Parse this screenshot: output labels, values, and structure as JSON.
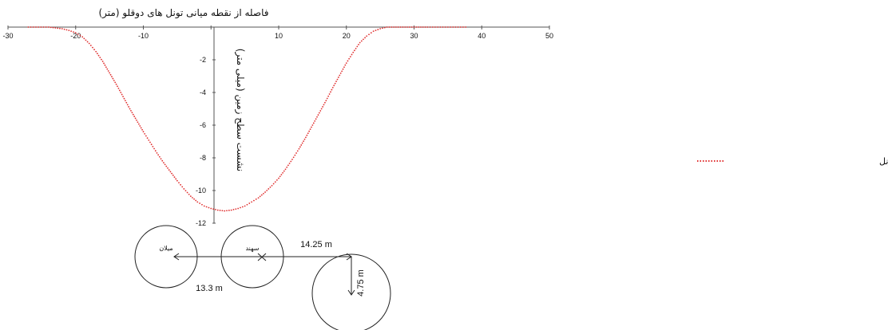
{
  "chart_data": {
    "type": "line",
    "title": "",
    "xlabel": "فاصله از نقطه میانی تونل های دوقلو (متر)",
    "ylabel": "نشست سطح زمین (میلی متر)",
    "xlim": [
      -30,
      50
    ],
    "ylim": [
      -12,
      0
    ],
    "x_ticks": [
      "-30",
      "-20",
      "-10",
      "0",
      "10",
      "20",
      "30",
      "40",
      "50"
    ],
    "y_ticks": [
      "-2",
      "-4",
      "-6",
      "-8",
      "-10",
      "-12"
    ],
    "grid": false,
    "legend_position": "right",
    "series": [
      {
        "name": "منحنی نشست بعد از حفاری تونل",
        "color": "#e03030",
        "style": "dotted",
        "x": [
          -27,
          -24,
          -22,
          -21,
          -20,
          -19,
          -18,
          -17,
          -16,
          -15,
          -14,
          -13,
          -12,
          -11,
          -10,
          -9,
          -8,
          -7,
          -6,
          -5,
          -4,
          -3,
          -2,
          -1,
          0,
          1,
          2,
          3,
          4,
          5,
          6,
          7,
          8,
          9,
          10,
          11,
          12,
          13,
          14,
          15,
          16,
          17,
          18,
          19,
          20,
          21,
          22,
          23,
          24,
          25,
          26,
          27,
          28,
          29,
          30,
          32,
          35,
          38
        ],
        "y": [
          0,
          0,
          -0.1,
          -0.2,
          -0.35,
          -0.6,
          -1.0,
          -1.5,
          -2.1,
          -2.8,
          -3.5,
          -4.25,
          -5.0,
          -5.7,
          -6.4,
          -7.05,
          -7.7,
          -8.3,
          -8.85,
          -9.4,
          -9.9,
          -10.35,
          -10.7,
          -10.95,
          -11.1,
          -11.2,
          -11.25,
          -11.2,
          -11.1,
          -10.95,
          -10.7,
          -10.45,
          -10.1,
          -9.7,
          -9.25,
          -8.7,
          -8.1,
          -7.45,
          -6.75,
          -6.0,
          -5.25,
          -4.5,
          -3.7,
          -2.95,
          -2.2,
          -1.55,
          -0.95,
          -0.55,
          -0.25,
          -0.1,
          0,
          0,
          0,
          0,
          0,
          0,
          0,
          0
        ]
      }
    ]
  },
  "tunnels": {
    "left_label": "میلان",
    "middle_label": "سهند",
    "spacing_label": "13.3 m",
    "offset_label": "14.25 m",
    "radius_label": "4.75 m"
  },
  "colors": {
    "curve": "#e03030",
    "axis": "#555555",
    "ink": "#111111"
  }
}
